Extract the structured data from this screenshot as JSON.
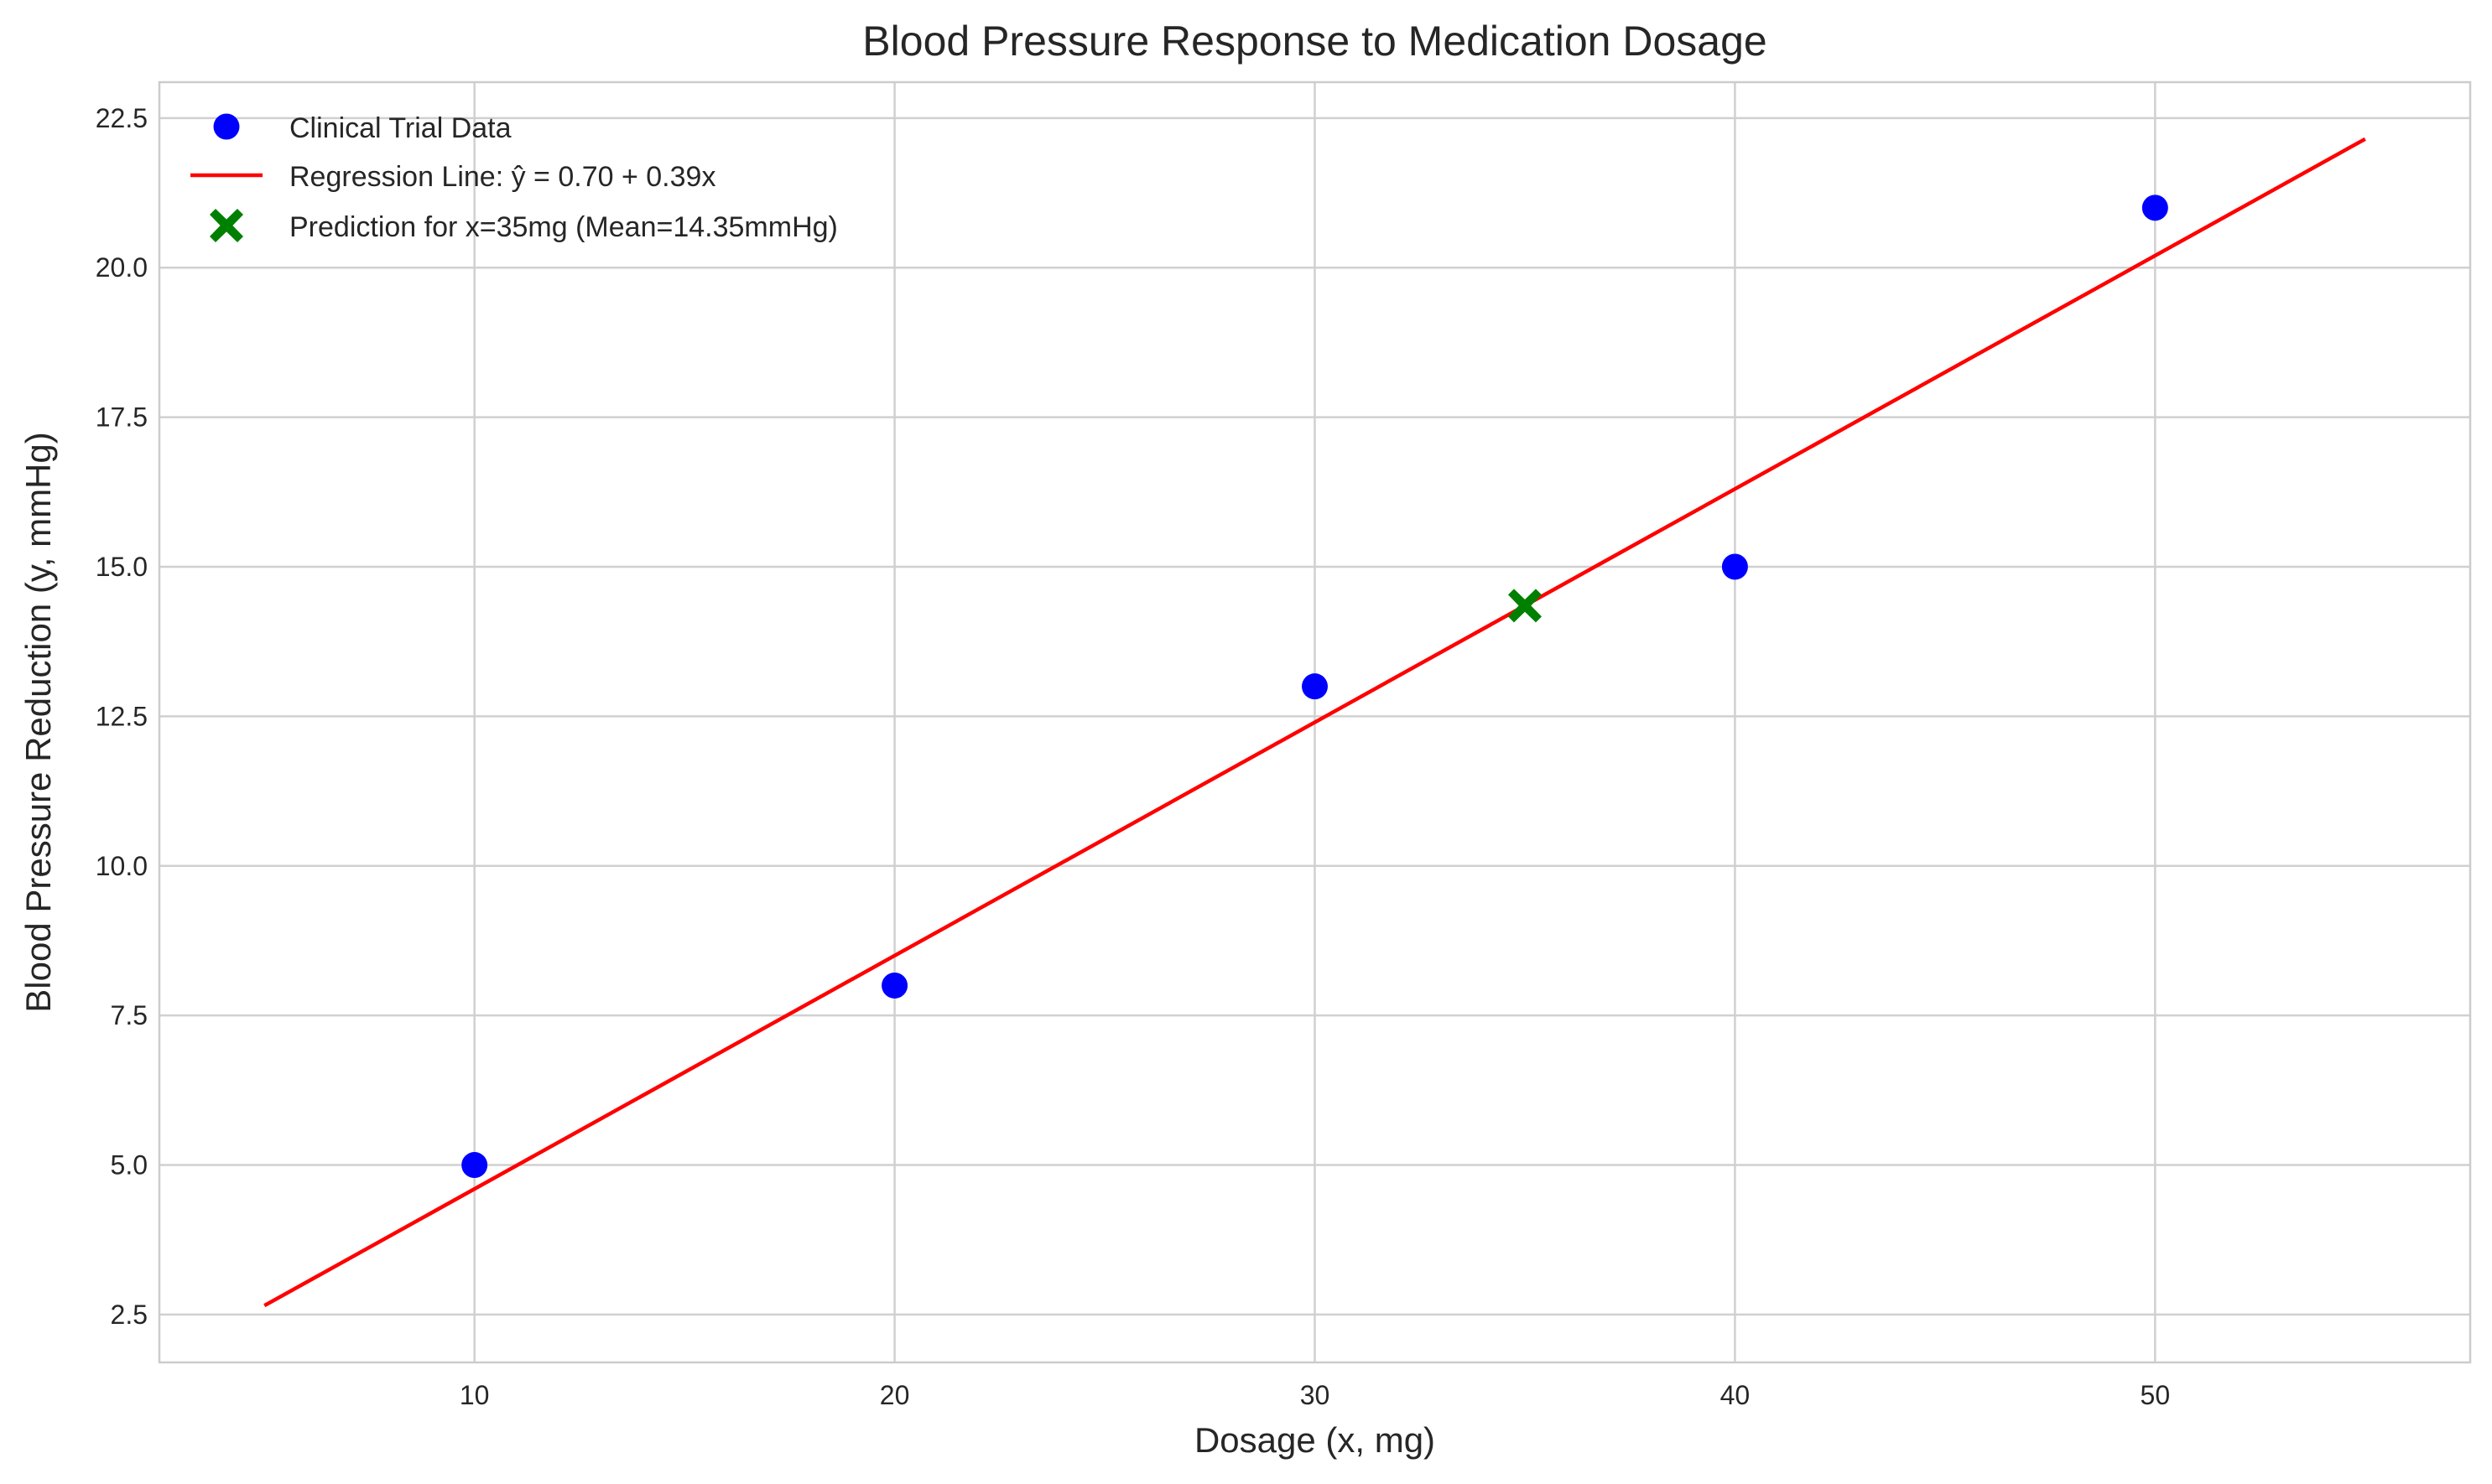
{
  "chart_data": {
    "type": "scatter",
    "title": "Blood Pressure Response to Medication Dosage",
    "xlabel": "Dosage (x, mg)",
    "ylabel": "Blood Pressure Reduction (y, mmHg)",
    "xlim": [
      2.5,
      57.5
    ],
    "ylim": [
      1.7,
      23.1
    ],
    "xticks": [
      10,
      20,
      30,
      40,
      50
    ],
    "yticks": [
      2.5,
      5.0,
      7.5,
      10.0,
      12.5,
      15.0,
      17.5,
      20.0,
      22.5
    ],
    "xtick_labels": [
      "10",
      "20",
      "30",
      "40",
      "50"
    ],
    "ytick_labels": [
      "2.5",
      "5.0",
      "7.5",
      "10.0",
      "12.5",
      "15.0",
      "17.5",
      "20.0",
      "22.5"
    ],
    "grid": true,
    "legend_position": "top-left",
    "series": [
      {
        "name": "Clinical Trial Data",
        "kind": "scatter",
        "marker": "circle",
        "color": "#0000ff",
        "x": [
          10,
          20,
          30,
          40,
          50
        ],
        "y": [
          5,
          8,
          13,
          15,
          21
        ]
      },
      {
        "name": "Regression Line: ŷ = 0.70 + 0.39x",
        "kind": "line",
        "color": "#ff0000",
        "x": [
          5,
          55
        ],
        "y": [
          2.65,
          22.15
        ]
      },
      {
        "name": "Prediction for x=35mg (Mean=14.35mmHg)",
        "kind": "scatter",
        "marker": "x-filled",
        "color": "#008000",
        "x": [
          35
        ],
        "y": [
          14.35
        ]
      }
    ]
  }
}
